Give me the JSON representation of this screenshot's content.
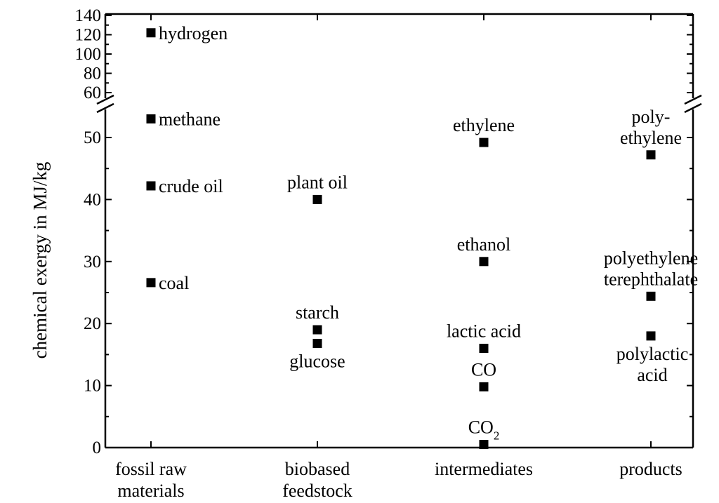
{
  "chart_data": {
    "type": "scatter",
    "ylabel": "chemical exergy in MJ/kg",
    "xlabel": "",
    "categories": [
      "fossil raw\nmaterials",
      "biobased\nfeedstock",
      "intermediates",
      "products"
    ],
    "y_axis": {
      "broken": true,
      "lower_range": [
        0,
        55
      ],
      "upper_range": [
        55,
        140
      ],
      "lower_ticks": [
        0,
        10,
        20,
        30,
        40,
        50
      ],
      "upper_ticks": [
        60,
        80,
        100,
        120,
        140
      ]
    },
    "grid": false,
    "points": [
      {
        "category": 0,
        "y": 122,
        "label": "hydrogen",
        "label_pos": "right"
      },
      {
        "category": 0,
        "y": 53,
        "label": "methane",
        "label_pos": "right"
      },
      {
        "category": 0,
        "y": 42.2,
        "label": "crude oil",
        "label_pos": "right"
      },
      {
        "category": 0,
        "y": 26.6,
        "label": "coal",
        "label_pos": "right"
      },
      {
        "category": 1,
        "y": 40,
        "label": "plant oil",
        "label_pos": "above"
      },
      {
        "category": 1,
        "y": 19,
        "label": "starch",
        "label_pos": "above"
      },
      {
        "category": 1,
        "y": 16.8,
        "label": "glucose",
        "label_pos": "below"
      },
      {
        "category": 2,
        "y": 49.2,
        "label": "ethylene",
        "label_pos": "above"
      },
      {
        "category": 2,
        "y": 30,
        "label": "ethanol",
        "label_pos": "above"
      },
      {
        "category": 2,
        "y": 16,
        "label": "lactic acid",
        "label_pos": "above"
      },
      {
        "category": 2,
        "y": 9.8,
        "label": "CO",
        "label_pos": "above"
      },
      {
        "category": 2,
        "y": 0.5,
        "label": "CO",
        "label_sub": "2",
        "label_pos": "above"
      },
      {
        "category": 3,
        "y": 47.2,
        "label": "poly-\nethylene",
        "label_pos": "above"
      },
      {
        "category": 3,
        "y": 24.4,
        "label": "polyethylene\nterephthalate",
        "label_pos": "above"
      },
      {
        "category": 3,
        "y": 18,
        "label": "polylactic\nacid",
        "label_pos": "below"
      }
    ]
  }
}
